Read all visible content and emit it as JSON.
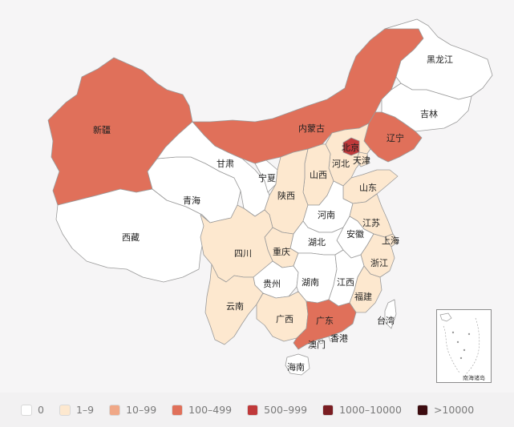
{
  "legend": [
    {
      "label": "0",
      "color": "#ffffff"
    },
    {
      "label": "1–9",
      "color": "#fde8cf"
    },
    {
      "label": "10–99",
      "color": "#f0a887"
    },
    {
      "label": "100–499",
      "color": "#e0705a"
    },
    {
      "label": "500–999",
      "color": "#c0393a"
    },
    {
      "label": "1000–10000",
      "color": "#7a1d22"
    },
    {
      "label": ">10000",
      "color": "#3d0c10"
    }
  ],
  "provinces": {
    "heilongjiang": {
      "label": "黑龙江",
      "band": "0"
    },
    "jilin": {
      "label": "吉林",
      "band": "0"
    },
    "liaoning": {
      "label": "辽宁",
      "band": "100–499"
    },
    "neimenggu": {
      "label": "内蒙古",
      "band": "100–499"
    },
    "beijing": {
      "label": "北京",
      "band": "500–999"
    },
    "tianjin": {
      "label": "天津",
      "band": "1–9"
    },
    "hebei": {
      "label": "河北",
      "band": "1–9"
    },
    "shanxi": {
      "label": "山西",
      "band": "1–9"
    },
    "shandong": {
      "label": "山东",
      "band": "1–9"
    },
    "xinjiang": {
      "label": "新疆",
      "band": "100–499"
    },
    "gansu": {
      "label": "甘肃",
      "band": "0"
    },
    "ningxia": {
      "label": "宁夏",
      "band": "0"
    },
    "qinghai": {
      "label": "青海",
      "band": "0"
    },
    "shaanxi": {
      "label": "陕西",
      "band": "1–9"
    },
    "xizang": {
      "label": "西藏",
      "band": "0"
    },
    "sichuan": {
      "label": "四川",
      "band": "1–9"
    },
    "chongqing": {
      "label": "重庆",
      "band": "1–9"
    },
    "henan": {
      "label": "河南",
      "band": "0"
    },
    "hubei": {
      "label": "湖北",
      "band": "0"
    },
    "anhui": {
      "label": "安徽",
      "band": "0"
    },
    "jiangsu": {
      "label": "江苏",
      "band": "1–9"
    },
    "shanghai": {
      "label": "上海",
      "band": "1–9"
    },
    "zhejiang": {
      "label": "浙江",
      "band": "1–9"
    },
    "guizhou": {
      "label": "贵州",
      "band": "0"
    },
    "hunan": {
      "label": "湖南",
      "band": "0"
    },
    "jiangxi": {
      "label": "江西",
      "band": "0"
    },
    "fujian": {
      "label": "福建",
      "band": "1–9"
    },
    "yunnan": {
      "label": "云南",
      "band": "1–9"
    },
    "guangxi": {
      "label": "广西",
      "band": "1–9"
    },
    "guangdong": {
      "label": "广东",
      "band": "100–499"
    },
    "taiwan": {
      "label": "台湾",
      "band": "0"
    },
    "hongkong": {
      "label": "香港",
      "band": "0"
    },
    "macau": {
      "label": "澳门",
      "band": "0"
    },
    "hainan": {
      "label": "海南",
      "band": "0"
    }
  },
  "inset": {
    "label": "南海诸岛"
  }
}
